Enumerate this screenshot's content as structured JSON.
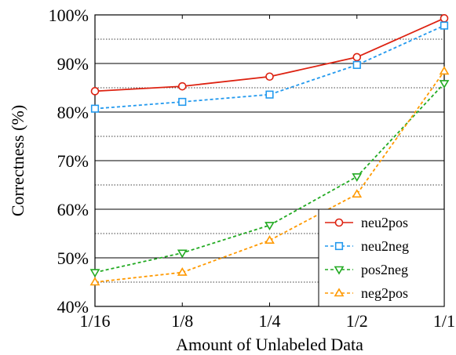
{
  "chart_data": {
    "type": "line",
    "xlabel": "Amount of Unlabeled Data",
    "ylabel": "Correctness (%)",
    "categories": [
      "1/16",
      "1/8",
      "1/4",
      "1/2",
      "1/1"
    ],
    "yticks": [
      "40%",
      "50%",
      "60%",
      "70%",
      "80%",
      "90%",
      "100%"
    ],
    "ylim": [
      40,
      100
    ],
    "grid": "horizontal major solid, minor dotted",
    "legend_position": "bottom-right",
    "series": [
      {
        "name": "neu2pos",
        "values": [
          84.3,
          85.3,
          87.3,
          91.3,
          99.3
        ],
        "color": "#dd2211",
        "marker": "circle",
        "line_style": "solid"
      },
      {
        "name": "neu2neg",
        "values": [
          80.7,
          82.1,
          83.6,
          89.7,
          97.8
        ],
        "color": "#2299ee",
        "marker": "square",
        "line_style": "dashed"
      },
      {
        "name": "pos2neg",
        "values": [
          47.0,
          51.0,
          56.7,
          66.7,
          85.9
        ],
        "color": "#22aa22",
        "marker": "triangle-down",
        "line_style": "dashed"
      },
      {
        "name": "neg2pos",
        "values": [
          45.0,
          47.0,
          53.6,
          63.1,
          88.4
        ],
        "color": "#ff9900",
        "marker": "triangle-up",
        "line_style": "dashed"
      }
    ]
  }
}
